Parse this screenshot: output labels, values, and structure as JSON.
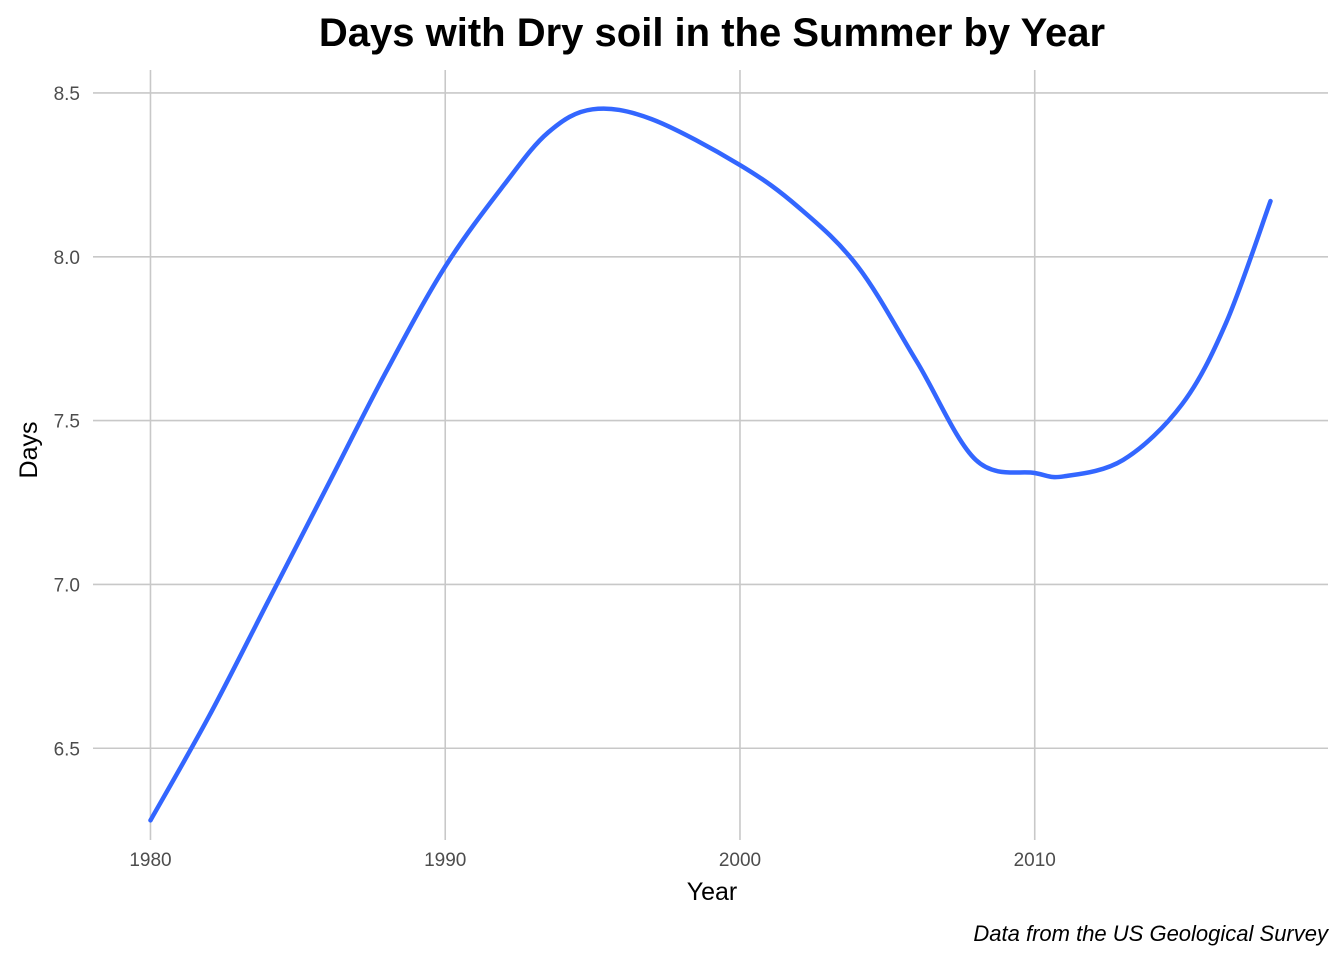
{
  "chart_data": {
    "type": "line",
    "title": "Days with Dry soil in the Summer by Year",
    "xlabel": "Year",
    "ylabel": "Days",
    "caption": "Data from the US Geological Survey",
    "xlim": [
      1980,
      2018
    ],
    "ylim": [
      6.22,
      8.57
    ],
    "x_ticks": [
      1980,
      1990,
      2000,
      2010
    ],
    "y_ticks": [
      6.5,
      7.0,
      7.5,
      8.0,
      8.5
    ],
    "y_tick_labels": [
      "6.5",
      "7.0",
      "7.5",
      "8.0",
      "8.5"
    ],
    "grid": true,
    "legend": "none",
    "series_color": "#3366ff",
    "grid_color": "#c8c8c8",
    "series": [
      {
        "x": [
          1980,
          1982,
          1984,
          1986,
          1988,
          1990,
          1992,
          1993.5,
          1995,
          1997,
          2000,
          2002,
          2004,
          2006,
          2008,
          2010,
          2011,
          2013,
          2015,
          2016.5,
          2018
        ],
        "values": [
          6.28,
          6.6,
          6.95,
          7.3,
          7.65,
          7.97,
          8.22,
          8.38,
          8.45,
          8.42,
          8.28,
          8.15,
          7.97,
          7.68,
          7.38,
          7.34,
          7.33,
          7.38,
          7.55,
          7.8,
          8.17
        ]
      }
    ]
  }
}
